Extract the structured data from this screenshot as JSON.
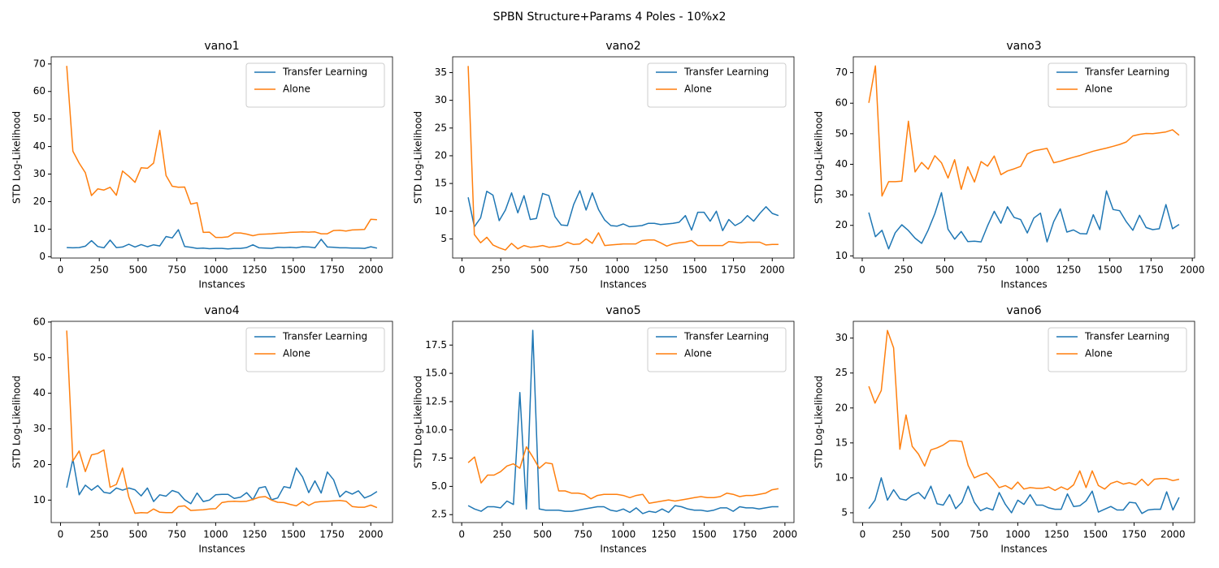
{
  "figure_title": "SPBN Structure+Params 4 Poles - 10%x2",
  "chart_data": [
    {
      "type": "line",
      "title": "vano1",
      "xlabel": "Instances",
      "ylabel": "STD Log-Likelihood",
      "legend": "upper right",
      "x": [
        40,
        80,
        120,
        160,
        200,
        240,
        280,
        320,
        360,
        400,
        440,
        480,
        520,
        560,
        600,
        640,
        680,
        720,
        760,
        800,
        840,
        880,
        920,
        960,
        1000,
        1040,
        1080,
        1120,
        1160,
        1200,
        1240,
        1280,
        1320,
        1360,
        1400,
        1440,
        1480,
        1520,
        1560,
        1600,
        1640,
        1680,
        1720,
        1760,
        1800,
        1840,
        1880,
        1920,
        1960,
        2000,
        2040
      ],
      "xlim": [
        -60,
        2140
      ],
      "xticks": [
        0,
        250,
        500,
        750,
        1000,
        1250,
        1500,
        1750,
        2000
      ],
      "ylim": [
        -0.5,
        72.6
      ],
      "yticks": [
        0,
        10,
        20,
        30,
        40,
        50,
        60,
        70
      ],
      "series": [
        {
          "name": "Transfer Learning",
          "color": "#1f77b4",
          "values": [
            3.3,
            3.2,
            3.3,
            3.8,
            5.8,
            3.7,
            3.2,
            6,
            3.3,
            3.5,
            4.5,
            3.5,
            4.4,
            3.6,
            4.3,
            3.9,
            7.3,
            6.8,
            9.8,
            3.7,
            3.4,
            3,
            3.1,
            2.9,
            3,
            3,
            2.8,
            3,
            3,
            3.3,
            4.3,
            3.2,
            3.1,
            3,
            3.4,
            3.3,
            3.4,
            3.2,
            3.6,
            3.5,
            3.2,
            6.3,
            3.5,
            3.4,
            3.2,
            3.2,
            3.1,
            3.1,
            3,
            3.6,
            3.1
          ]
        },
        {
          "name": "Alone",
          "color": "#ff7f0e",
          "values": [
            69.3,
            38.3,
            34,
            30.5,
            22.2,
            24.6,
            24.2,
            25.2,
            22.3,
            31.1,
            29.2,
            27,
            32.3,
            32.1,
            34,
            45.9,
            29.5,
            25.6,
            25.2,
            25.3,
            19.1,
            19.6,
            8.8,
            8.9,
            7,
            7,
            7.2,
            8.6,
            8.6,
            8.2,
            7.6,
            8.1,
            8.2,
            8.3,
            8.5,
            8.6,
            8.8,
            8.9,
            9,
            8.9,
            9,
            8.3,
            8.3,
            9.5,
            9.6,
            9.3,
            9.7,
            9.8,
            9.9,
            13.6,
            13.4
          ]
        }
      ]
    },
    {
      "type": "line",
      "title": "vano2",
      "xlabel": "Instances",
      "ylabel": "STD Log-Likelihood",
      "legend": "upper right",
      "x": [
        40,
        80,
        120,
        160,
        200,
        240,
        280,
        320,
        360,
        400,
        440,
        480,
        520,
        560,
        600,
        640,
        680,
        720,
        760,
        800,
        840,
        880,
        920,
        960,
        1000,
        1040,
        1080,
        1120,
        1160,
        1200,
        1240,
        1280,
        1320,
        1360,
        1400,
        1440,
        1480,
        1520,
        1560,
        1600,
        1640,
        1680,
        1720,
        1760,
        1800,
        1840,
        1880,
        1920,
        1960,
        2000,
        2040
      ],
      "xlim": [
        -60,
        2140
      ],
      "xticks": [
        0,
        250,
        500,
        750,
        1000,
        1250,
        1500,
        1750,
        2000
      ],
      "ylim": [
        1.55,
        37.85
      ],
      "yticks": [
        5,
        10,
        15,
        20,
        25,
        30,
        35
      ],
      "series": [
        {
          "name": "Transfer Learning",
          "color": "#1f77b4",
          "values": [
            12.5,
            7.2,
            8.8,
            13.6,
            12.9,
            8.3,
            10.2,
            13.3,
            9.7,
            12.8,
            8.5,
            8.7,
            13.2,
            12.8,
            9,
            7.5,
            7.4,
            11.2,
            13.7,
            10.2,
            13.3,
            10.3,
            8.4,
            7.4,
            7.3,
            7.7,
            7.2,
            7.3,
            7.4,
            7.8,
            7.8,
            7.6,
            7.7,
            7.8,
            8,
            9.2,
            6.6,
            9.8,
            9.8,
            8.2,
            10,
            6.5,
            8.5,
            7.4,
            8,
            9.2,
            8.2,
            9.6,
            10.8,
            9.6,
            9.2
          ]
        },
        {
          "name": "Alone",
          "color": "#ff7f0e",
          "values": [
            36.2,
            5.8,
            4.3,
            5.3,
            3.9,
            3.4,
            3,
            4.2,
            3.2,
            3.8,
            3.5,
            3.6,
            3.8,
            3.5,
            3.6,
            3.8,
            4.4,
            4,
            4.1,
            5,
            4.2,
            6.1,
            3.8,
            3.9,
            4,
            4.1,
            4.1,
            4.1,
            4.7,
            4.8,
            4.8,
            4.3,
            3.7,
            4.1,
            4.3,
            4.4,
            4.7,
            3.8,
            3.8,
            3.8,
            3.8,
            3.8,
            4.5,
            4.4,
            4.3,
            4.4,
            4.4,
            4.4,
            3.9,
            4,
            4.0
          ]
        }
      ]
    },
    {
      "type": "line",
      "title": "vano3",
      "xlabel": "Instances",
      "ylabel": "STD Log-Likelihood",
      "legend": "upper right",
      "x": [
        40,
        80,
        120,
        160,
        200,
        240,
        280,
        320,
        360,
        400,
        440,
        480,
        520,
        560,
        600,
        640,
        680,
        720,
        760,
        800,
        840,
        880,
        920,
        960,
        1000,
        1040,
        1080,
        1120,
        1160,
        1200,
        1240,
        1280,
        1320,
        1360,
        1400,
        1440,
        1480,
        1520,
        1560,
        1600,
        1640,
        1680,
        1720,
        1760,
        1800,
        1840,
        1880,
        1920
      ],
      "xlim": [
        -54,
        2014
      ],
      "xticks": [
        0,
        250,
        500,
        750,
        1000,
        1250,
        1500,
        1750,
        2000
      ],
      "ylim": [
        9.3,
        75.2
      ],
      "yticks": [
        10,
        20,
        30,
        40,
        50,
        60,
        70
      ],
      "series": [
        {
          "name": "Transfer Learning",
          "color": "#1f77b4",
          "values": [
            24.2,
            16.3,
            18.4,
            12.3,
            17.6,
            20.2,
            18.3,
            15.8,
            14.1,
            18.5,
            23.8,
            30.7,
            18.7,
            15.5,
            18,
            14.7,
            14.8,
            14.6,
            19.9,
            24.6,
            20.7,
            26.1,
            22.6,
            21.9,
            17.5,
            22.4,
            24,
            14.6,
            21.2,
            25.4,
            17.8,
            18.5,
            17.3,
            17.2,
            23.5,
            18.6,
            31.3,
            25.2,
            24.8,
            21.2,
            18.4,
            23.3,
            19.3,
            18.6,
            18.9,
            26.8,
            18.9,
            20.3
          ]
        },
        {
          "name": "Alone",
          "color": "#ff7f0e",
          "values": [
            60.1,
            72.2,
            29.6,
            34.3,
            34.3,
            34.5,
            54.1,
            37.5,
            40.6,
            38.4,
            42.8,
            40.5,
            35.5,
            41.5,
            31.8,
            39.2,
            34.2,
            40.9,
            39.4,
            42.7,
            36.6,
            37.8,
            38.5,
            39.3,
            43.4,
            44.4,
            44.8,
            45.2,
            40.5,
            41,
            41.7,
            42.3,
            42.9,
            43.6,
            44.3,
            44.8,
            45.3,
            45.9,
            46.5,
            47.3,
            49.3,
            49.8,
            50.1,
            50,
            50.3,
            50.6,
            51.3,
            49.5
          ]
        }
      ]
    },
    {
      "type": "line",
      "title": "vano4",
      "xlabel": "Instances",
      "ylabel": "STD Log-Likelihood",
      "legend": "upper right",
      "x": [
        40,
        80,
        120,
        160,
        200,
        240,
        280,
        320,
        360,
        400,
        440,
        480,
        520,
        560,
        600,
        640,
        680,
        720,
        760,
        800,
        840,
        880,
        920,
        960,
        1000,
        1040,
        1080,
        1120,
        1160,
        1200,
        1240,
        1280,
        1320,
        1360,
        1400,
        1440,
        1480,
        1520,
        1560,
        1600,
        1640,
        1680,
        1720,
        1760,
        1800,
        1840,
        1880,
        1920,
        1960,
        2000,
        2040
      ],
      "xlim": [
        -60,
        2140
      ],
      "xticks": [
        0,
        250,
        500,
        750,
        1000,
        1250,
        1500,
        1750,
        2000
      ],
      "ylim": [
        3.7,
        60.2
      ],
      "yticks": [
        10,
        20,
        30,
        40,
        50,
        60
      ],
      "series": [
        {
          "name": "Transfer Learning",
          "color": "#1f77b4",
          "values": [
            13.5,
            21.5,
            11.5,
            14.2,
            12.8,
            14.1,
            12.2,
            11.9,
            13.4,
            12.8,
            13.4,
            12.9,
            11.2,
            13.4,
            9.6,
            11.5,
            11.1,
            12.7,
            12.1,
            10.1,
            9,
            12,
            9.6,
            10,
            11.5,
            11.6,
            11.6,
            10.5,
            10.8,
            12.1,
            10.1,
            13.4,
            13.8,
            10.1,
            10.6,
            13.8,
            13.4,
            19,
            16.5,
            12.1,
            15.4,
            12,
            17.9,
            15.7,
            10.9,
            12.5,
            11.7,
            12.6,
            10.6,
            11.3,
            12.4
          ]
        },
        {
          "name": "Alone",
          "color": "#ff7f0e",
          "values": [
            57.6,
            21,
            23.8,
            18,
            22.7,
            23.1,
            24.1,
            13.6,
            14.4,
            19,
            10.9,
            6.3,
            6.5,
            6.4,
            7.5,
            6.6,
            6.5,
            6.5,
            8.2,
            8.4,
            7.1,
            7.2,
            7.3,
            7.5,
            7.6,
            9.3,
            9.6,
            9.7,
            9.6,
            9.7,
            10.2,
            10.8,
            11,
            10,
            9.4,
            9.3,
            8.8,
            8.4,
            9.6,
            8.5,
            9.4,
            9.6,
            9.7,
            9.8,
            9.9,
            9.7,
            8.2,
            8,
            8,
            8.6,
            7.9
          ]
        }
      ]
    },
    {
      "type": "line",
      "title": "vano5",
      "xlabel": "Instances",
      "ylabel": "STD Log-Likelihood",
      "legend": "upper right",
      "x": [
        40,
        80,
        120,
        160,
        200,
        240,
        280,
        320,
        360,
        400,
        440,
        480,
        520,
        560,
        600,
        640,
        680,
        720,
        760,
        800,
        840,
        880,
        920,
        960,
        1000,
        1040,
        1080,
        1120,
        1160,
        1200,
        1240,
        1280,
        1320,
        1360,
        1400,
        1440,
        1480,
        1520,
        1560,
        1600,
        1640,
        1680,
        1720,
        1760,
        1800,
        1840,
        1880,
        1920,
        1960
      ],
      "xlim": [
        -56,
        2056
      ],
      "xticks": [
        0,
        250,
        500,
        750,
        1000,
        1250,
        1500,
        1750,
        2000
      ],
      "ylim": [
        1.8,
        19.6
      ],
      "yticks": [
        2.5,
        {
          "value": 5,
          "label": "5.0"
        },
        7.5,
        {
          "value": 10,
          "label": "10.0"
        },
        12.5,
        {
          "value": 15,
          "label": "15.0"
        },
        17.5
      ],
      "series": [
        {
          "name": "Transfer Learning",
          "color": "#1f77b4",
          "values": [
            3.3,
            3,
            2.8,
            3.2,
            3.2,
            3.1,
            3.7,
            3.4,
            13.3,
            3,
            18.8,
            3,
            2.9,
            2.9,
            2.9,
            2.8,
            2.8,
            2.9,
            3,
            3.1,
            3.2,
            3.2,
            2.9,
            2.8,
            3,
            2.7,
            3.1,
            2.6,
            2.8,
            2.7,
            3,
            2.7,
            3.3,
            3.2,
            3,
            2.9,
            2.9,
            2.8,
            2.9,
            3.1,
            3.1,
            2.8,
            3.2,
            3.1,
            3.1,
            3,
            3.1,
            3.2,
            3.2
          ]
        },
        {
          "name": "Alone",
          "color": "#ff7f0e",
          "values": [
            7.1,
            7.6,
            5.3,
            6,
            6,
            6.3,
            6.8,
            7,
            6.6,
            8.5,
            7.6,
            6.6,
            7.1,
            7,
            4.6,
            4.6,
            4.4,
            4.4,
            4.3,
            3.9,
            4.2,
            4.3,
            4.3,
            4.3,
            4.2,
            4,
            4.2,
            4.3,
            3.5,
            3.6,
            3.7,
            3.8,
            3.7,
            3.8,
            3.9,
            4,
            4.1,
            4,
            4,
            4.1,
            4.4,
            4.3,
            4.1,
            4.2,
            4.2,
            4.3,
            4.4,
            4.7,
            4.8
          ]
        }
      ]
    },
    {
      "type": "line",
      "title": "vano6",
      "xlabel": "Instances",
      "ylabel": "STD Log-Likelihood",
      "legend": "upper right",
      "x": [
        40,
        80,
        120,
        160,
        200,
        240,
        280,
        320,
        360,
        400,
        440,
        480,
        520,
        560,
        600,
        640,
        680,
        720,
        760,
        800,
        840,
        880,
        920,
        960,
        1000,
        1040,
        1080,
        1120,
        1160,
        1200,
        1240,
        1280,
        1320,
        1360,
        1400,
        1440,
        1480,
        1520,
        1560,
        1600,
        1640,
        1680,
        1720,
        1760,
        1800,
        1840,
        1880,
        1920,
        1960,
        2000,
        2040
      ],
      "xlim": [
        -60,
        2140
      ],
      "xticks": [
        0,
        250,
        500,
        750,
        1000,
        1250,
        1500,
        1750,
        2000
      ],
      "ylim": [
        3.6,
        32.4
      ],
      "yticks": [
        5,
        10,
        15,
        20,
        25,
        30
      ],
      "series": [
        {
          "name": "Transfer Learning",
          "color": "#1f77b4",
          "values": [
            5.6,
            6.8,
            10,
            6.8,
            8.3,
            7,
            6.8,
            7.5,
            7.9,
            7,
            8.8,
            6.3,
            6.1,
            7.6,
            5.6,
            6.5,
            8.8,
            6.5,
            5.3,
            5.7,
            5.4,
            7.9,
            6.2,
            5,
            6.8,
            6.2,
            7.6,
            6.1,
            6.1,
            5.7,
            5.5,
            5.5,
            7.7,
            5.9,
            6,
            6.7,
            8.1,
            5.1,
            5.5,
            5.9,
            5.4,
            5.4,
            6.5,
            6.4,
            4.9,
            5.4,
            5.5,
            5.5,
            8,
            5.4,
            7.2
          ]
        },
        {
          "name": "Alone",
          "color": "#ff7f0e",
          "values": [
            23.1,
            20.7,
            22.5,
            31.1,
            28.6,
            14.1,
            19,
            14.5,
            13.4,
            11.7,
            14,
            14.3,
            14.7,
            15.3,
            15.3,
            15.2,
            11.8,
            10,
            10.4,
            10.7,
            9.8,
            8.6,
            8.9,
            8.4,
            9.4,
            8.4,
            8.6,
            8.5,
            8.5,
            8.7,
            8.2,
            8.7,
            8.3,
            9,
            11,
            8.6,
            11,
            8.9,
            8.4,
            9.2,
            9.5,
            9.1,
            9.3,
            9,
            9.8,
            8.9,
            9.8,
            9.9,
            9.9,
            9.6,
            9.8
          ]
        }
      ]
    }
  ]
}
